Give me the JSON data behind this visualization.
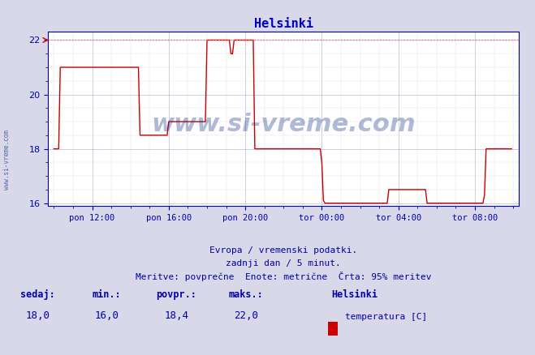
{
  "title": "Helsinki",
  "title_color": "#0000cc",
  "bg_color": "#d8d8e8",
  "plot_bg_color": "#ffffff",
  "grid_color_major": "#aaaacc",
  "grid_color_minor": "#ccccdd",
  "line_color": "#cc0000",
  "dashed_max_color": "#ff6666",
  "axis_color": "#0000aa",
  "tick_color": "#0000aa",
  "watermark_color": "#1a3a8a",
  "ylim": [
    16,
    22
  ],
  "yticks": [
    16,
    18,
    20,
    22
  ],
  "xlabel_line1": "Evropa / vremenski podatki.",
  "xlabel_line2": "zadnji dan / 5 minut.",
  "xlabel_line3": "Meritve: povprečne  Enote: metrične  Črta: 95% meritev",
  "xtick_labels": [
    "pon 12:00",
    "pon 16:00",
    "pon 20:00",
    "tor 00:00",
    "tor 04:00",
    "tor 08:00"
  ],
  "xtick_positions": [
    2,
    6,
    10,
    14,
    18,
    22
  ],
  "footer_bold_labels": [
    "sedaj:",
    "min.:",
    "povpr.:",
    "maks.:"
  ],
  "footer_values": [
    "18,0",
    "16,0",
    "18,4",
    "22,0"
  ],
  "footer_station": "Helsinki",
  "footer_series": "temperatura [C]",
  "legend_color": "#cc0000",
  "watermark_text": "www.si-vreme.com",
  "sidewatermark_text": "www.si-vreme.com",
  "max_line_y": 22,
  "figsize": [
    6.59,
    4.38
  ],
  "dpi": 100,
  "xlim_start": 0,
  "xlim_end": 24
}
